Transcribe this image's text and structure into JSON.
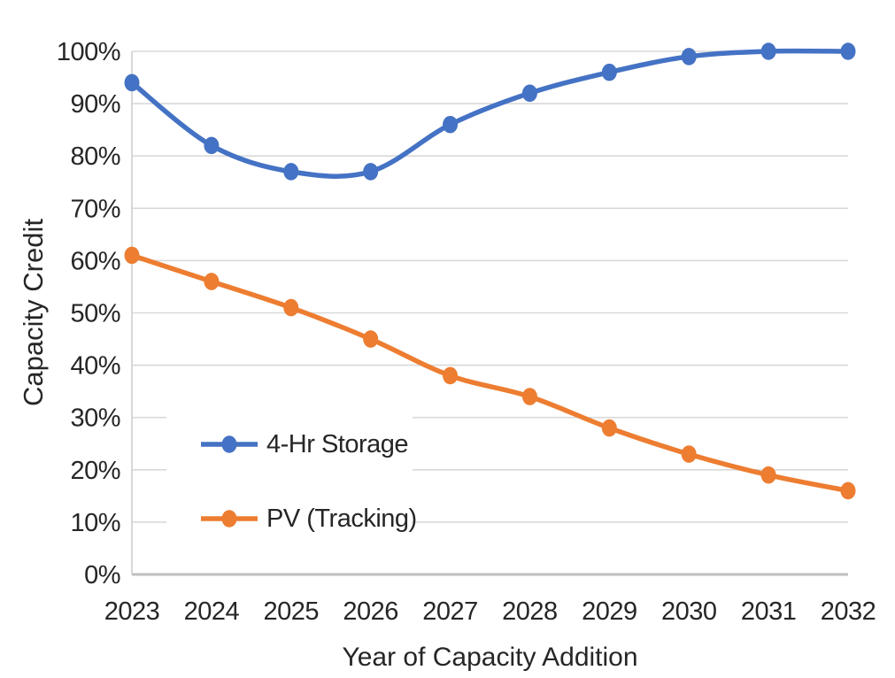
{
  "chart_data": {
    "type": "line",
    "title": "",
    "xlabel": "Year of Capacity Addition",
    "ylabel": "Capacity Credit",
    "categories": [
      "2023",
      "2024",
      "2025",
      "2026",
      "2027",
      "2028",
      "2029",
      "2030",
      "2031",
      "2032"
    ],
    "series": [
      {
        "name": "4-Hr Storage",
        "color": "#4472C4",
        "values": [
          94,
          82,
          77,
          77,
          86,
          92,
          96,
          99,
          100,
          100
        ]
      },
      {
        "name": "PV (Tracking)",
        "color": "#ED7D31",
        "values": [
          61,
          56,
          51,
          45,
          38,
          34,
          28,
          23,
          19,
          16
        ]
      }
    ],
    "ylim": [
      0,
      100
    ],
    "ytick_step": 10,
    "ytick_suffix": "%",
    "grid": true,
    "smooth": true,
    "legend_position": "inside-lower-left",
    "marker": "circle"
  },
  "style": {
    "gridline_color": "#D9D9D9",
    "y_axis_color": "#CFCFCF",
    "x_axis_color": "#BFBFBF",
    "text_color": "#262626"
  }
}
